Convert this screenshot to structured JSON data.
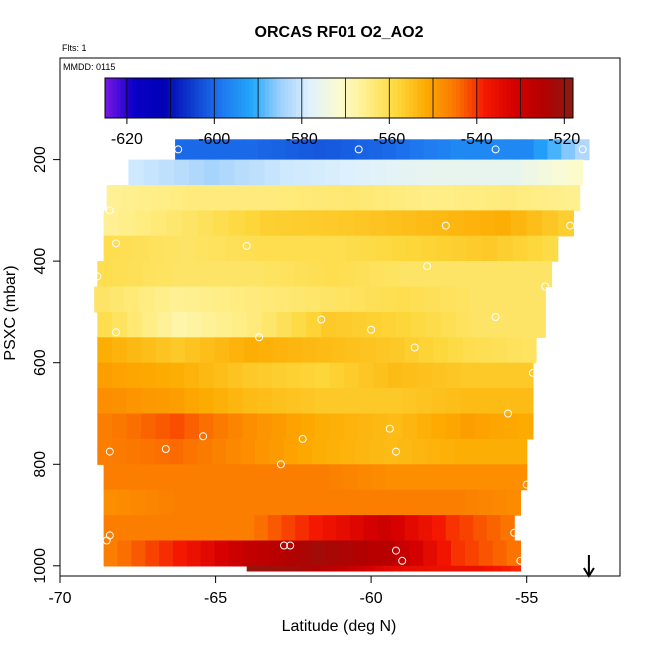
{
  "chart_data": {
    "type": "heatmap",
    "title": "ORCAS RF01 O2_AO2",
    "flights_note": "Flts: 1",
    "date_note": "MMDD: 0115",
    "xlabel": "Latitude (deg N)",
    "ylabel": "PSXC (mbar)",
    "xlim": [
      -70,
      -52
    ],
    "ylim": [
      1020,
      0
    ],
    "x_ticks": [
      -70,
      -65,
      -60,
      -55
    ],
    "x_tick_labels": [
      "-70",
      "-65",
      "-60",
      "-55"
    ],
    "y_ticks": [
      200,
      400,
      600,
      800,
      1000
    ],
    "y_tick_labels": [
      "200",
      "400",
      "600",
      "800",
      "1000"
    ],
    "colorbar": {
      "range": [
        -625,
        -518
      ],
      "ticks": [
        -620,
        -600,
        -580,
        -560,
        -540,
        -520
      ],
      "tick_labels": [
        "-620",
        "-600",
        "-580",
        "-560",
        "-540",
        "-520"
      ],
      "colors": [
        "#7b16e6",
        "#0a00c8",
        "#0000b4",
        "#0f3dd0",
        "#1e78f0",
        "#24a7fa",
        "#9fd0fc",
        "#dff1fd",
        "#fcfccf",
        "#ffee86",
        "#fdd73a",
        "#fdaa00",
        "#fb7400",
        "#f51800",
        "#d40000",
        "#b30000",
        "#8a1c14"
      ]
    },
    "layers": [
      {
        "p": [
          160,
          200
        ],
        "lat": [
          -66.3,
          -53.0
        ],
        "values": [
          -600,
          -600,
          -602,
          -600,
          -596,
          -596,
          -580
        ]
      },
      {
        "p": [
          200,
          250
        ],
        "lat": [
          -67.8,
          -53.2
        ],
        "values": [
          -580,
          -584,
          -580,
          -578,
          -576,
          -576,
          -570
        ]
      },
      {
        "p": [
          250,
          300
        ],
        "lat": [
          -68.5,
          -53.3
        ],
        "values": [
          -566,
          -564,
          -564,
          -563,
          -565,
          -564,
          -566
        ]
      },
      {
        "p": [
          300,
          350
        ],
        "lat": [
          -68.6,
          -53.5
        ],
        "values": [
          -566,
          -562,
          -557,
          -556,
          -554,
          -552,
          -558
        ]
      },
      {
        "p": [
          350,
          400
        ],
        "lat": [
          -68.6,
          -54.0
        ],
        "values": [
          -560,
          -562,
          -560,
          -560,
          -558,
          -556,
          -560
        ]
      },
      {
        "p": [
          400,
          450
        ],
        "lat": [
          -68.8,
          -54.2
        ],
        "values": [
          -560,
          -562,
          -562,
          -560,
          -562,
          -562,
          -562
        ]
      },
      {
        "p": [
          450,
          500
        ],
        "lat": [
          -68.9,
          -54.4
        ],
        "values": [
          -562,
          -566,
          -564,
          -562,
          -560,
          -562,
          -562
        ]
      },
      {
        "p": [
          500,
          550
        ],
        "lat": [
          -68.8,
          -54.4
        ],
        "values": [
          -560,
          -568,
          -564,
          -556,
          -558,
          -562,
          -562
        ]
      },
      {
        "p": [
          550,
          600
        ],
        "lat": [
          -68.8,
          -54.7
        ],
        "values": [
          -552,
          -556,
          -552,
          -554,
          -556,
          -560,
          -562
        ]
      },
      {
        "p": [
          600,
          650
        ],
        "lat": [
          -68.8,
          -54.8
        ],
        "values": [
          -550,
          -552,
          -556,
          -558,
          -554,
          -556,
          -556
        ]
      },
      {
        "p": [
          650,
          700
        ],
        "lat": [
          -68.8,
          -54.8
        ],
        "values": [
          -548,
          -550,
          -554,
          -556,
          -556,
          -554,
          -554
        ]
      },
      {
        "p": [
          700,
          750
        ],
        "lat": [
          -68.8,
          -54.8
        ],
        "values": [
          -546,
          -542,
          -548,
          -552,
          -554,
          -550,
          -552
        ]
      },
      {
        "p": [
          750,
          800
        ],
        "lat": [
          -68.8,
          -55.0
        ],
        "values": [
          -546,
          -544,
          -548,
          -552,
          -554,
          -552,
          -552
        ]
      },
      {
        "p": [
          800,
          850
        ],
        "lat": [
          -68.6,
          -55.0
        ],
        "values": [
          -546,
          -546,
          -546,
          -546,
          -548,
          -548,
          -548
        ]
      },
      {
        "p": [
          850,
          900
        ],
        "lat": [
          -68.6,
          -55.2
        ],
        "values": [
          -548,
          -546,
          -546,
          -546,
          -546,
          -546,
          -548
        ]
      },
      {
        "p": [
          900,
          950
        ],
        "lat": [
          -68.6,
          -55.4
        ],
        "values": [
          -546,
          -546,
          -546,
          -538,
          -530,
          -540,
          -546
        ]
      },
      {
        "p": [
          950,
          1000
        ],
        "lat": [
          -68.6,
          -55.2
        ],
        "values": [
          -546,
          -538,
          -528,
          -522,
          -526,
          -540,
          -546
        ]
      },
      {
        "p": [
          1000,
          1010
        ],
        "lat": [
          -64.0,
          -55.2
        ],
        "values": [
          -520,
          -522,
          -528,
          -534,
          -536,
          -536,
          -540
        ]
      }
    ],
    "sample_points": [
      {
        "lat": -66.2,
        "p": 180
      },
      {
        "lat": -60.4,
        "p": 180
      },
      {
        "lat": -56.0,
        "p": 180
      },
      {
        "lat": -53.2,
        "p": 180
      },
      {
        "lat": -68.4,
        "p": 300
      },
      {
        "lat": -57.6,
        "p": 330
      },
      {
        "lat": -53.6,
        "p": 330
      },
      {
        "lat": -68.2,
        "p": 365
      },
      {
        "lat": -64.0,
        "p": 370
      },
      {
        "lat": -58.2,
        "p": 410
      },
      {
        "lat": -68.8,
        "p": 430
      },
      {
        "lat": -54.4,
        "p": 450
      },
      {
        "lat": -61.6,
        "p": 515
      },
      {
        "lat": -56.0,
        "p": 510
      },
      {
        "lat": -68.2,
        "p": 540
      },
      {
        "lat": -63.6,
        "p": 550
      },
      {
        "lat": -60.0,
        "p": 535
      },
      {
        "lat": -54.4,
        "p": 565
      },
      {
        "lat": -58.6,
        "p": 570
      },
      {
        "lat": -54.8,
        "p": 620
      },
      {
        "lat": -55.6,
        "p": 700
      },
      {
        "lat": -59.4,
        "p": 730
      },
      {
        "lat": -65.4,
        "p": 745
      },
      {
        "lat": -62.2,
        "p": 750
      },
      {
        "lat": -68.4,
        "p": 775
      },
      {
        "lat": -66.6,
        "p": 770
      },
      {
        "lat": -59.2,
        "p": 775
      },
      {
        "lat": -62.9,
        "p": 800
      },
      {
        "lat": -55.0,
        "p": 840
      },
      {
        "lat": -68.4,
        "p": 940
      },
      {
        "lat": -55.4,
        "p": 935
      },
      {
        "lat": -68.5,
        "p": 950
      },
      {
        "lat": -62.8,
        "p": 960
      },
      {
        "lat": -62.6,
        "p": 960
      },
      {
        "lat": -59.2,
        "p": 970
      },
      {
        "lat": -59.0,
        "p": 990
      },
      {
        "lat": -55.2,
        "p": 990
      }
    ],
    "arrow_marker": {
      "lat": -53.0,
      "direction": "down"
    }
  }
}
